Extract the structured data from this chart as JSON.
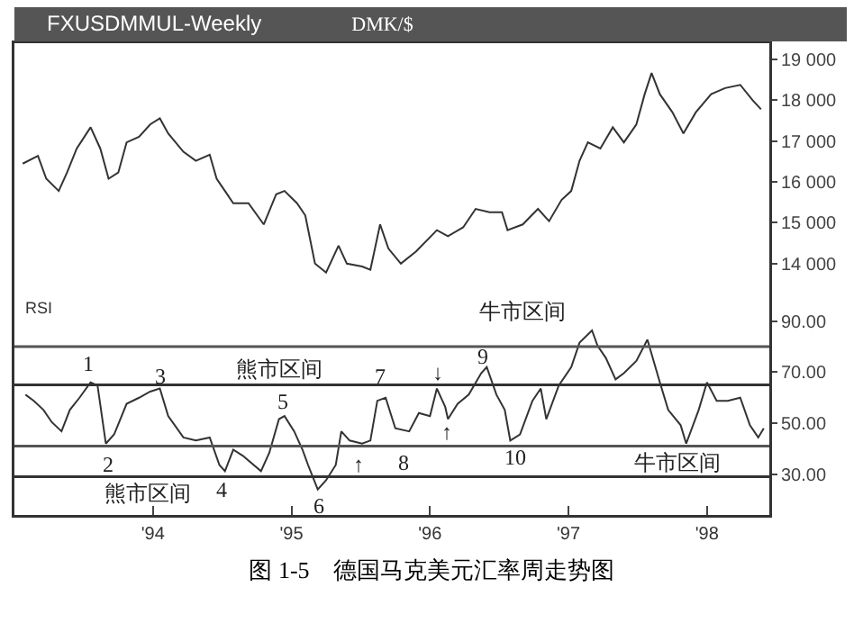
{
  "chart_data": [
    {
      "type": "line",
      "title": "FXUSDMMUL-Weekly",
      "subtitle": "DMK/$",
      "x": [
        1993.06,
        1993.17,
        1993.23,
        1993.32,
        1993.38,
        1993.45,
        1993.55,
        1993.62,
        1993.68,
        1993.75,
        1993.81,
        1993.9,
        1993.98,
        1994.05,
        1994.11,
        1994.22,
        1994.31,
        1994.41,
        1994.46,
        1994.52,
        1994.58,
        1994.69,
        1994.8,
        1994.89,
        1994.95,
        1995.04,
        1995.1,
        1995.17,
        1995.25,
        1995.34,
        1995.4,
        1995.51,
        1995.57,
        1995.64,
        1995.7,
        1995.79,
        1995.9,
        1996.05,
        1996.13,
        1996.24,
        1996.33,
        1996.43,
        1996.52,
        1996.56,
        1996.67,
        1996.78,
        1996.86,
        1996.95,
        1997.02,
        1997.08,
        1997.14,
        1997.23,
        1997.32,
        1997.4,
        1997.49,
        1997.55,
        1997.6,
        1997.66,
        1997.75,
        1997.83,
        1997.92,
        1998.03,
        1998.13,
        1998.24,
        1998.33,
        1998.39
      ],
      "series": [
        {
          "color": "#333333",
          "values": [
            16450,
            16640,
            16080,
            15780,
            16230,
            16820,
            17340,
            16820,
            16080,
            16230,
            16970,
            17110,
            17410,
            17560,
            17190,
            16740,
            16520,
            16670,
            16080,
            15780,
            15480,
            15480,
            14960,
            15700,
            15780,
            15480,
            15180,
            14000,
            13780,
            14440,
            14000,
            13930,
            13850,
            14960,
            14370,
            14000,
            14300,
            14820,
            14670,
            14890,
            15340,
            15260,
            15260,
            14820,
            14960,
            15340,
            15040,
            15560,
            15780,
            16520,
            16970,
            16820,
            17340,
            16970,
            17410,
            18150,
            18670,
            18150,
            17710,
            17190,
            17710,
            18150,
            18300,
            18380,
            18000,
            17780
          ]
        }
      ],
      "xlim": [
        1993.0,
        1998.45
      ],
      "ylim": [
        13400,
        19400
      ],
      "yticks": [
        {
          "value": 14000,
          "label": "14 000"
        },
        {
          "value": 15000,
          "label": "15 000"
        },
        {
          "value": 16000,
          "label": "16 000"
        },
        {
          "value": 17000,
          "label": "17 000"
        },
        {
          "value": 18000,
          "label": "18 000"
        },
        {
          "value": 19000,
          "label": "19 000"
        }
      ],
      "tick_labels": "y",
      "grid": false,
      "marker": "none",
      "line_style": "solid"
    },
    {
      "type": "line",
      "title": "RSI",
      "x": [
        1993.08,
        1993.14,
        1993.21,
        1993.27,
        1993.34,
        1993.4,
        1993.47,
        1993.55,
        1993.6,
        1993.66,
        1993.72,
        1993.81,
        1993.9,
        1993.98,
        1994.05,
        1994.11,
        1994.22,
        1994.31,
        1994.41,
        1994.48,
        1994.52,
        1994.58,
        1994.65,
        1994.78,
        1994.84,
        1994.91,
        1994.95,
        1995.02,
        1995.08,
        1995.12,
        1995.19,
        1995.25,
        1995.32,
        1995.36,
        1995.42,
        1995.51,
        1995.57,
        1995.62,
        1995.68,
        1995.75,
        1995.85,
        1995.92,
        1996.0,
        1996.05,
        1996.11,
        1996.13,
        1996.2,
        1996.28,
        1996.37,
        1996.41,
        1996.48,
        1996.54,
        1996.58,
        1996.65,
        1996.74,
        1996.8,
        1996.84,
        1996.93,
        1997.02,
        1997.08,
        1997.17,
        1997.21,
        1997.27,
        1997.34,
        1997.4,
        1997.49,
        1997.57,
        1997.66,
        1997.72,
        1997.81,
        1997.85,
        1997.94,
        1998.0,
        1998.07,
        1998.15,
        1998.24,
        1998.31,
        1998.37,
        1998.41
      ],
      "series": [
        {
          "color": "#333333",
          "values": [
            61.2,
            58.8,
            55.2,
            50.4,
            46.8,
            55.2,
            60,
            66,
            64.8,
            42,
            45.6,
            57.6,
            60,
            62.4,
            63.6,
            52.8,
            44.4,
            43.2,
            44.4,
            33.6,
            31.2,
            39.6,
            37.2,
            31.2,
            38.4,
            51.6,
            52.8,
            46.8,
            39.6,
            33.6,
            24,
            27.6,
            33.6,
            46.8,
            43.2,
            42,
            43.2,
            58.8,
            60,
            48,
            46.8,
            54,
            52.8,
            63.6,
            56.4,
            51.6,
            57.6,
            61.2,
            69.6,
            72,
            61.2,
            55.2,
            43.2,
            45.6,
            58.8,
            63.6,
            51.6,
            64.8,
            72,
            81.6,
            86.4,
            80.4,
            75.6,
            67.2,
            69.6,
            74.4,
            82.8,
            66,
            55.2,
            49.2,
            42,
            55.2,
            66,
            58.8,
            58.8,
            60,
            49.2,
            44.4,
            48
          ]
        }
      ],
      "xlim": [
        1993.0,
        1998.45
      ],
      "ylim": [
        14,
        103
      ],
      "xticks": [
        {
          "value": 1994,
          "label": "'94"
        },
        {
          "value": 1995,
          "label": "'95"
        },
        {
          "value": 1996,
          "label": "'96"
        },
        {
          "value": 1997,
          "label": "'97"
        },
        {
          "value": 1998,
          "label": "'98"
        }
      ],
      "yticks": [
        {
          "value": 30,
          "label": "30.00"
        },
        {
          "value": 50,
          "label": "50.00"
        },
        {
          "value": 70,
          "label": "70.00"
        },
        {
          "value": 90,
          "label": "90.00"
        }
      ],
      "ref_lines": [
        {
          "axis": "y",
          "value": 80,
          "color": "#555555"
        },
        {
          "axis": "y",
          "value": 65,
          "color": "#333333"
        },
        {
          "axis": "y",
          "value": 41,
          "color": "#555555"
        },
        {
          "axis": "y",
          "value": 29,
          "color": "#333333"
        }
      ],
      "grid": false,
      "marker": "none",
      "line_style": "solid",
      "annotations": [
        "牛市区间",
        "熊市区间",
        "牛市区间",
        "熊市区间",
        "1",
        "2",
        "3",
        "4",
        "5",
        "6",
        "7",
        "8",
        "9",
        "10",
        "↑",
        "↓",
        "↑",
        "图 1-5　德国马克美元汇率周走势图"
      ]
    }
  ]
}
